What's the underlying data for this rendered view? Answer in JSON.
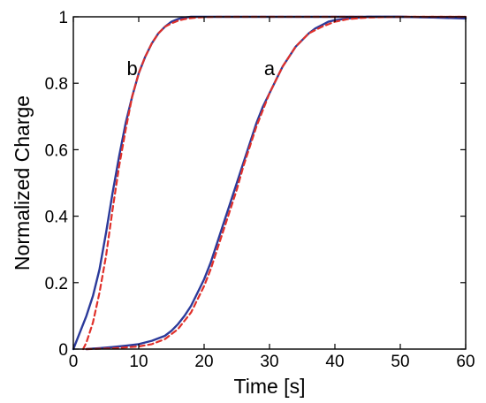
{
  "chart_data": {
    "type": "line",
    "xlabel": "Time [s]",
    "ylabel": "Normalized Charge",
    "xlim": [
      0,
      60
    ],
    "ylim": [
      0,
      1
    ],
    "xticks": [
      0,
      10,
      20,
      30,
      40,
      50,
      60
    ],
    "yticks": [
      0,
      0.2,
      0.4,
      0.6,
      0.8,
      1
    ],
    "xtick_labels": [
      "0",
      "10",
      "20",
      "30",
      "40",
      "50",
      "60"
    ],
    "ytick_labels": [
      "0",
      "0.2",
      "0.4",
      "0.6",
      "0.8",
      "1"
    ],
    "grid": false,
    "annotations": [
      {
        "text": "b",
        "x": 9,
        "y": 0.825
      },
      {
        "text": "a",
        "x": 30,
        "y": 0.825
      }
    ],
    "series": [
      {
        "curve": "b",
        "style": "measured",
        "color": "#2b3a9a",
        "dash": "solid",
        "x": [
          0,
          1,
          2,
          3,
          4,
          5,
          6,
          7,
          8,
          9,
          10,
          11,
          12,
          13,
          14,
          15,
          16,
          17,
          18,
          19,
          20,
          25,
          30,
          40,
          50,
          60
        ],
        "y": [
          0.0,
          0.05,
          0.1,
          0.16,
          0.24,
          0.35,
          0.47,
          0.58,
          0.68,
          0.76,
          0.83,
          0.88,
          0.92,
          0.95,
          0.97,
          0.985,
          0.993,
          0.998,
          1.0,
          1.0,
          1.0,
          1.0,
          1.0,
          1.0,
          1.0,
          0.997
        ]
      },
      {
        "curve": "b",
        "style": "fit",
        "color": "#e0302a",
        "dash": "dashed",
        "x": [
          1.5,
          2,
          3,
          4,
          5,
          6,
          7,
          8,
          9,
          10,
          11,
          12,
          13,
          14,
          15,
          16,
          17,
          18,
          19,
          20,
          22,
          25,
          30,
          40,
          60
        ],
        "y": [
          0.0,
          0.02,
          0.08,
          0.17,
          0.28,
          0.42,
          0.55,
          0.66,
          0.76,
          0.83,
          0.88,
          0.92,
          0.95,
          0.97,
          0.98,
          0.988,
          0.993,
          0.996,
          0.998,
          0.999,
          1.0,
          1.0,
          1.0,
          1.0,
          1.0
        ]
      },
      {
        "curve": "a",
        "style": "measured",
        "color": "#2b3a9a",
        "dash": "solid",
        "x": [
          2,
          4,
          6,
          8,
          10,
          12,
          14,
          15,
          16,
          17,
          18,
          19,
          20,
          21,
          22,
          23,
          24,
          25,
          26,
          27,
          28,
          29,
          30,
          31,
          32,
          33,
          34,
          35,
          36,
          37,
          38,
          39,
          40,
          42,
          45,
          50,
          55,
          60
        ],
        "y": [
          0.0,
          0.003,
          0.006,
          0.01,
          0.015,
          0.025,
          0.04,
          0.055,
          0.075,
          0.1,
          0.13,
          0.17,
          0.21,
          0.26,
          0.32,
          0.38,
          0.44,
          0.5,
          0.56,
          0.62,
          0.68,
          0.73,
          0.77,
          0.81,
          0.85,
          0.88,
          0.91,
          0.93,
          0.95,
          0.965,
          0.975,
          0.985,
          0.99,
          0.995,
          1.0,
          1.0,
          0.998,
          0.995
        ]
      },
      {
        "curve": "a",
        "style": "fit",
        "color": "#e0302a",
        "dash": "dashed",
        "x": [
          2,
          6,
          10,
          12,
          14,
          15,
          16,
          17,
          18,
          19,
          20,
          21,
          22,
          23,
          24,
          25,
          26,
          27,
          28,
          29,
          30,
          31,
          32,
          33,
          34,
          35,
          36,
          37,
          38,
          40,
          42,
          45,
          50,
          60
        ],
        "y": [
          0.0,
          0.002,
          0.008,
          0.015,
          0.03,
          0.045,
          0.06,
          0.085,
          0.11,
          0.15,
          0.19,
          0.24,
          0.3,
          0.36,
          0.42,
          0.48,
          0.55,
          0.61,
          0.67,
          0.72,
          0.77,
          0.81,
          0.85,
          0.88,
          0.91,
          0.93,
          0.95,
          0.96,
          0.97,
          0.985,
          0.993,
          0.998,
          1.0,
          1.0
        ]
      }
    ]
  }
}
